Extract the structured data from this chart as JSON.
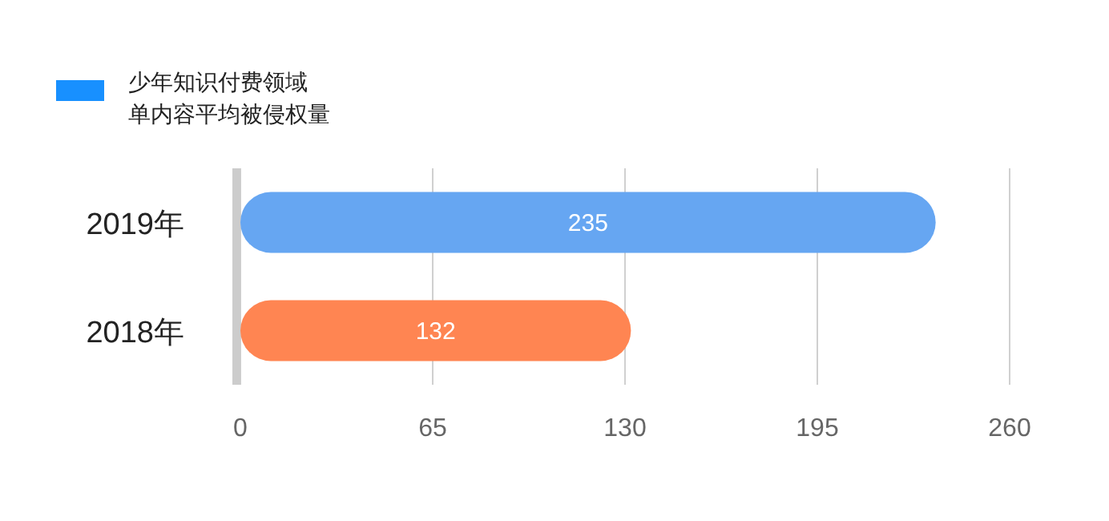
{
  "chart_data": {
    "type": "bar",
    "orientation": "horizontal",
    "categories": [
      "2019年",
      "2018年"
    ],
    "series": [
      {
        "name": "少年知识付费领域单内容平均被侵权量",
        "color": "#1890ff",
        "colors": [
          "#66a6f2",
          "#ff8552"
        ],
        "values": [
          235,
          132
        ]
      }
    ],
    "xlim": [
      0,
      260
    ],
    "xticks": [
      0,
      65,
      130,
      195,
      260
    ],
    "grid": "x",
    "legend": "top left",
    "data_labels": true
  }
}
